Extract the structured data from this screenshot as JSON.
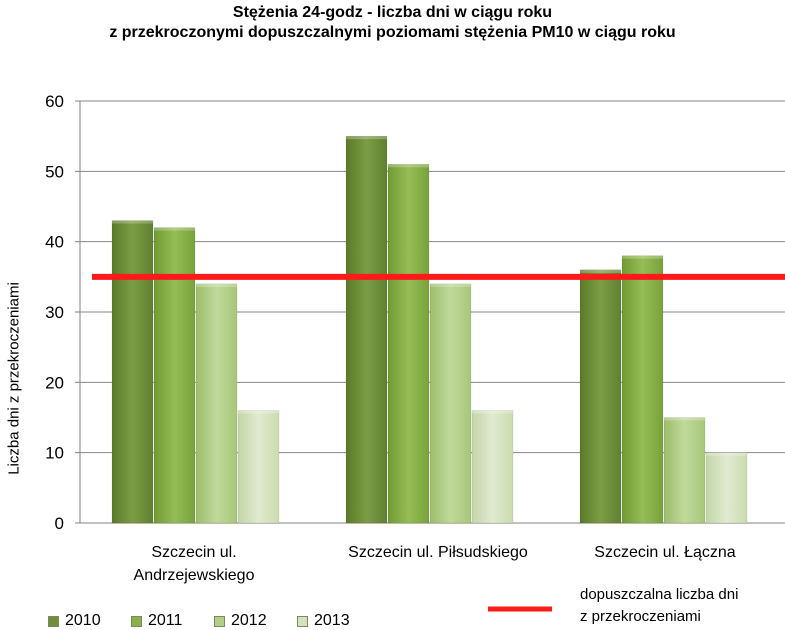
{
  "chart_data": {
    "type": "bar",
    "title_line1": "Stężenia 24-godz - liczba dni w ciągu roku",
    "title_line2": "z przekroczonymi dopuszczalnymi poziomami stężenia PM10 w ciągu roku",
    "ylabel": "Liczba dni z przekroczeniami",
    "ylim": [
      0,
      60
    ],
    "yticks": [
      "0",
      "10",
      "20",
      "30",
      "40",
      "50",
      "60"
    ],
    "categories": [
      {
        "line1": "Szczecin ul.",
        "line2": "Andrzejewskiego"
      },
      {
        "line1": "Szczecin ul. Piłsudskiego",
        "line2": ""
      },
      {
        "line1": "Szczecin ul. Łączna",
        "line2": ""
      }
    ],
    "series": [
      {
        "name": "2010",
        "values": [
          43,
          55,
          36
        ],
        "color": "#6f8f3a"
      },
      {
        "name": "2011",
        "values": [
          42,
          51,
          38
        ],
        "color": "#89b24a"
      },
      {
        "name": "2012",
        "values": [
          34,
          34,
          15
        ],
        "color": "#b3cf86"
      },
      {
        "name": "2013",
        "values": [
          16,
          16,
          10
        ],
        "color": "#d3e2bd"
      }
    ],
    "limit": {
      "value": 35,
      "color": "#ff1a1a",
      "label_line1": "dopuszczalna liczba dni",
      "label_line2": "z przekroczeniami"
    },
    "grid": true,
    "legend": "bottom"
  }
}
